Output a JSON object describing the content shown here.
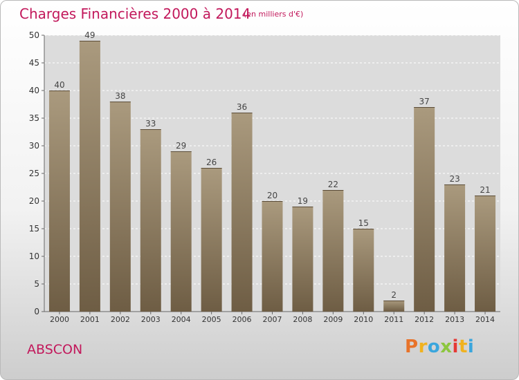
{
  "header": {
    "title": "Charges Financières 2000 à 2014",
    "unit": "(en milliers d'€)"
  },
  "footer": {
    "place": "ABSCON",
    "brand": {
      "letters": [
        "P",
        "r",
        "o",
        "x",
        "i",
        "t",
        "i"
      ],
      "colors": [
        "#e8732a",
        "#f0b21f",
        "#3aa6dd",
        "#8cc63f",
        "#e53935",
        "#f0b21f",
        "#3aa6dd"
      ]
    }
  },
  "colors": {
    "bar_top": "#aa9a7e",
    "bar_bottom": "#6e5d44",
    "label": "#444444"
  },
  "chart_data": {
    "type": "bar",
    "title": "Charges Financières 2000 à 2014",
    "subtitle": "(en milliers d'€)",
    "categories": [
      "2000",
      "2001",
      "2002",
      "2003",
      "2004",
      "2005",
      "2006",
      "2007",
      "2008",
      "2009",
      "2010",
      "2011",
      "2012",
      "2013",
      "2014"
    ],
    "values": [
      40,
      49,
      38,
      33,
      29,
      26,
      36,
      20,
      19,
      22,
      15,
      2,
      37,
      23,
      21
    ],
    "ylim": [
      0,
      50
    ],
    "yticks": [
      0,
      5,
      10,
      15,
      20,
      25,
      30,
      35,
      40,
      45,
      50
    ],
    "grid": true,
    "legend": "none"
  }
}
